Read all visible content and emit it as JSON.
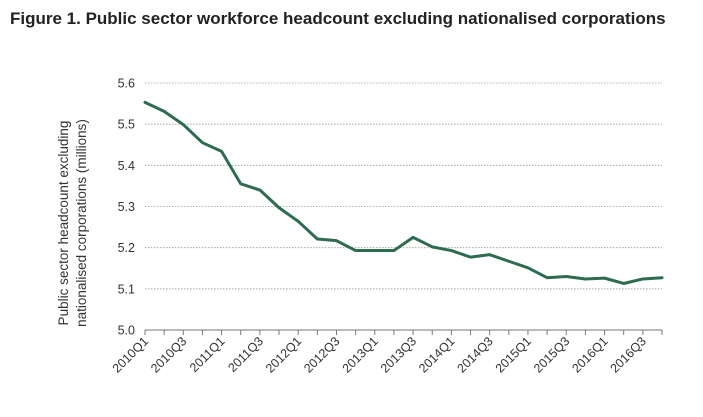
{
  "title": "Figure 1. Public sector workforce headcount excluding nationalised corporations",
  "chart_data": {
    "type": "line",
    "title": "Figure 1. Public sector workforce headcount excluding nationalised corporations",
    "ylabel_lines": [
      "Public sector headcount excluding",
      "nationalised corporations (millions)"
    ],
    "xlabel": "",
    "ylim": [
      5.0,
      5.6
    ],
    "yticks": [
      5.0,
      5.1,
      5.2,
      5.3,
      5.4,
      5.5,
      5.6
    ],
    "ytick_labels": [
      "5.0",
      "5.1",
      "5.2",
      "5.3",
      "5.4",
      "5.5",
      "5.6"
    ],
    "grid": "horizontal dotted",
    "x": [
      "2010Q1",
      "2010Q2",
      "2010Q3",
      "2010Q4",
      "2011Q1",
      "2011Q2",
      "2011Q3",
      "2011Q4",
      "2012Q1",
      "2012Q2",
      "2012Q3",
      "2012Q4",
      "2013Q1",
      "2013Q2",
      "2013Q3",
      "2013Q4",
      "2014Q1",
      "2014Q2",
      "2014Q3",
      "2014Q4",
      "2015Q1",
      "2015Q2",
      "2015Q3",
      "2015Q4",
      "2016Q1",
      "2016Q2",
      "2016Q3",
      "2016Q4"
    ],
    "xtick_labels": [
      "2010Q1",
      "2010Q3",
      "2011Q1",
      "2011Q3",
      "2012Q1",
      "2012Q3",
      "2013Q1",
      "2013Q3",
      "2014Q1",
      "2014Q3",
      "2015Q1",
      "2015Q3",
      "2016Q1",
      "2016Q3"
    ],
    "series": [
      {
        "color": "#2e6b4f",
        "values": [
          5.553,
          5.531,
          5.499,
          5.455,
          5.434,
          5.355,
          5.34,
          5.297,
          5.264,
          5.221,
          5.217,
          5.193,
          5.193,
          5.193,
          5.225,
          5.202,
          5.193,
          5.177,
          5.183,
          5.167,
          5.151,
          5.127,
          5.13,
          5.124,
          5.126,
          5.113,
          5.124,
          5.127
        ]
      }
    ]
  }
}
